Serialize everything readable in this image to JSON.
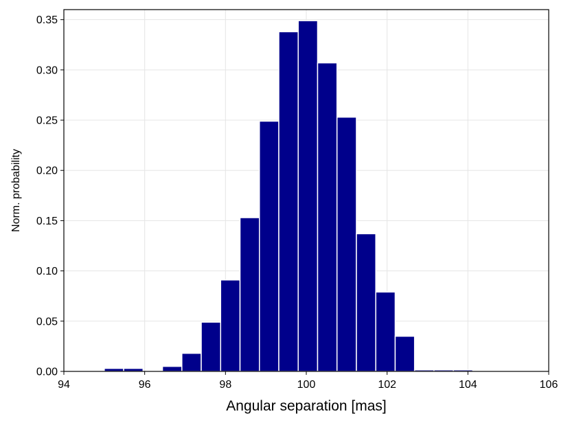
{
  "chart_data": {
    "type": "bar",
    "title": "",
    "xlabel": "Angular separation [mas]",
    "ylabel": "Norm. probability",
    "xlim": [
      94,
      106
    ],
    "ylim": [
      0,
      0.36
    ],
    "xticks": [
      94,
      96,
      98,
      100,
      102,
      104,
      106
    ],
    "xtick_labels": [
      "94",
      "96",
      "98",
      "100",
      "102",
      "104",
      "106"
    ],
    "yticks": [
      0.0,
      0.05,
      0.1,
      0.15,
      0.2,
      0.25,
      0.3,
      0.35
    ],
    "ytick_labels": [
      "0.00",
      "0.05",
      "0.10",
      "0.15",
      "0.20",
      "0.25",
      "0.30",
      "0.35"
    ],
    "grid": true,
    "bin_width": 0.48,
    "bin_starts": [
      95.0,
      95.48,
      95.96,
      96.44,
      96.92,
      97.4,
      97.88,
      98.36,
      98.84,
      99.32,
      99.8,
      100.28,
      100.76,
      101.24,
      101.72,
      102.2,
      102.68,
      103.16,
      103.64
    ],
    "values": [
      0.003,
      0.003,
      0.0,
      0.005,
      0.018,
      0.049,
      0.091,
      0.153,
      0.249,
      0.338,
      0.349,
      0.307,
      0.253,
      0.137,
      0.079,
      0.035,
      0.0015,
      0.0015,
      0.0015
    ],
    "colors": {
      "bar_fill": "#00008b",
      "bar_edge": "#ffffff",
      "grid": "#e5e5e5",
      "axes": "#000000"
    }
  }
}
